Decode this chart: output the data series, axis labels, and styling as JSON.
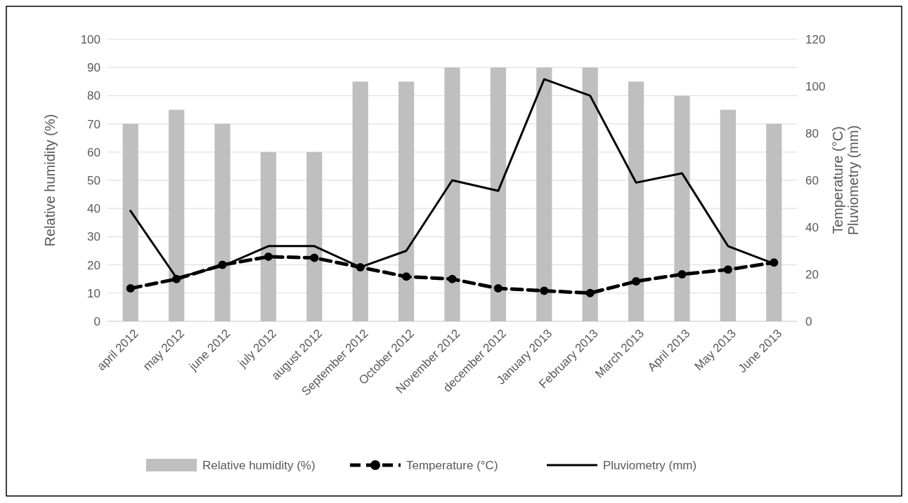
{
  "chart_data": {
    "type": "bar",
    "ylabel": "Relative humidity (%)",
    "y2label": "Temperature (°C)\nPluviometry (mm)",
    "categories": [
      "april 2012",
      "may 2012",
      "june 2012",
      "july 2012",
      "august 2012",
      "September 2012",
      "October 2012",
      "November 2012",
      "december 2012",
      "January 2013",
      "February 2013",
      "March 2013",
      "April 2013",
      "May 2013",
      "June 2013"
    ],
    "series": [
      {
        "name": "Relative humidity (%)",
        "color": "#bfbfbf",
        "values": [
          70,
          75,
          70,
          60,
          60,
          85,
          85,
          90,
          90,
          90,
          90,
          85,
          80,
          75,
          70
        ]
      },
      {
        "name": "Temperature (°C)",
        "type": "line",
        "axis": "y2",
        "color": "#000000",
        "line_style": "dashed",
        "marker": "circle",
        "values": [
          14,
          18,
          24,
          27.5,
          27,
          23,
          19,
          18,
          14,
          13,
          12,
          17,
          20,
          22,
          25
        ]
      },
      {
        "name": "Pluviometry (mm)",
        "type": "line",
        "axis": "y2",
        "color": "#000000",
        "line_style": "solid",
        "marker": "none",
        "values": [
          47,
          18.5,
          23.5,
          32,
          32,
          23,
          30,
          60,
          55.5,
          103,
          96,
          59,
          63,
          32,
          24.5
        ]
      }
    ],
    "ylim": [
      0,
      100
    ],
    "yticks": [
      0,
      10,
      20,
      30,
      40,
      50,
      60,
      70,
      80,
      90,
      100
    ],
    "y2lim": [
      0,
      120
    ],
    "y2ticks": [
      0,
      20,
      40,
      60,
      80,
      100,
      120
    ],
    "grid": "y",
    "legend": "bottom"
  }
}
